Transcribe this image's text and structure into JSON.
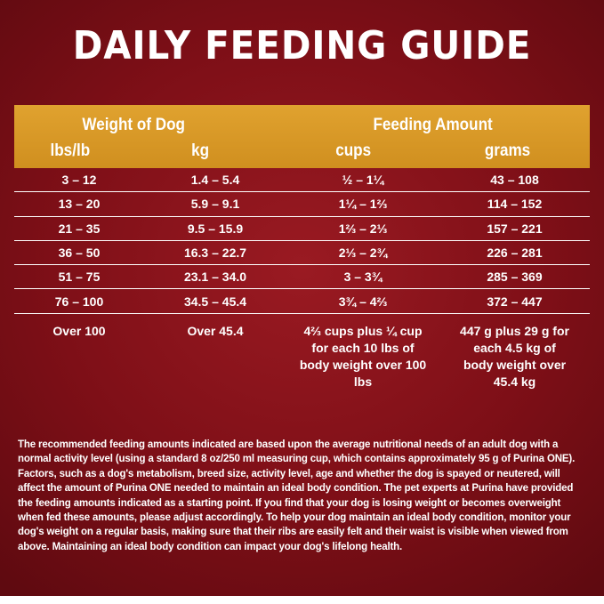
{
  "title": "DAILY FEEDING GUIDE",
  "header": {
    "weight_group": "Weight of Dog",
    "amount_group": "Feeding Amount",
    "col_lbs": "lbs/lb",
    "col_kg": "kg",
    "col_cups": "cups",
    "col_grams": "grams"
  },
  "rows": [
    {
      "lbs": "3 – 12",
      "kg": "1.4 – 5.4",
      "cups": "½ – 1¼",
      "grams": "43 – 108"
    },
    {
      "lbs": "13 – 20",
      "kg": "5.9 – 9.1",
      "cups": "1¼ – 1⅔",
      "grams": "114 – 152"
    },
    {
      "lbs": "21 – 35",
      "kg": "9.5 – 15.9",
      "cups": "1⅔ – 2⅓",
      "grams": "157 – 221"
    },
    {
      "lbs": "36 – 50",
      "kg": "16.3 – 22.7",
      "cups": "2⅓ – 2¾",
      "grams": "226 – 281"
    },
    {
      "lbs": "51 – 75",
      "kg": "23.1 – 34.0",
      "cups": "3 – 3¾",
      "grams": "285 – 369"
    },
    {
      "lbs": "76 – 100",
      "kg": "34.5 – 45.4",
      "cups": "3¾ – 4⅔",
      "grams": "372 – 447"
    }
  ],
  "last_row": {
    "lbs": "Over 100",
    "kg": "Over 45.4",
    "cups": "4⅔ cups plus ¼ cup for each 10 lbs of body weight over 100 lbs",
    "grams": "447 g plus 29 g for each 4.5 kg of body weight over 45.4 kg"
  },
  "paragraph": "The recommended feeding amounts indicated are based upon the average nutritional needs of an adult dog with a normal activity level (using a standard 8 oz/250 ml measuring cup, which contains approximately 95 g of Purina ONE). Factors, such as a dog's metabolism, breed size, activity level, age and whether the dog is spayed or neutered, will affect the amount of Purina ONE needed to maintain an ideal body condition. The pet experts at Purina have provided the feeding amounts indicated as a starting point. If you find that your dog is losing weight or becomes overweight when fed these amounts, please adjust accordingly. To help your dog maintain an ideal body condition, monitor your dog's weight on a regular basis, making sure that their ribs are easily felt and their waist is visible when viewed from above. Maintaining an ideal body condition can impact your dog's lifelong health.",
  "colors": {
    "background": "#8a1119",
    "header_band": "#d8982a",
    "text": "#ffffff"
  }
}
